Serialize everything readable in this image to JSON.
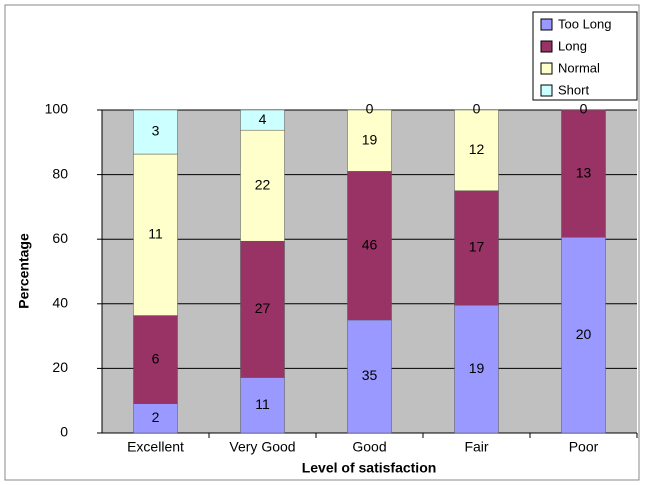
{
  "chart_data": {
    "type": "bar",
    "stacking": "percent",
    "categories": [
      "Excellent",
      "Very Good",
      "Good",
      "Fair",
      "Poor"
    ],
    "series": [
      {
        "name": "Too Long",
        "color": "#9999ff",
        "values": [
          2,
          11,
          35,
          19,
          20
        ]
      },
      {
        "name": "Long",
        "color": "#993366",
        "values": [
          6,
          27,
          46,
          17,
          13
        ]
      },
      {
        "name": "Normal",
        "color": "#ffffcc",
        "values": [
          11,
          22,
          19,
          12,
          0
        ]
      },
      {
        "name": "Short",
        "color": "#ccffff",
        "values": [
          3,
          4,
          0,
          0,
          null
        ]
      }
    ],
    "ylim": [
      0,
      100
    ],
    "yticks": [
      0,
      20,
      40,
      60,
      80,
      100
    ],
    "grid": true,
    "ylabel": "Percentage",
    "xlabel": "Level of satisfaction",
    "legend": "top-right"
  }
}
